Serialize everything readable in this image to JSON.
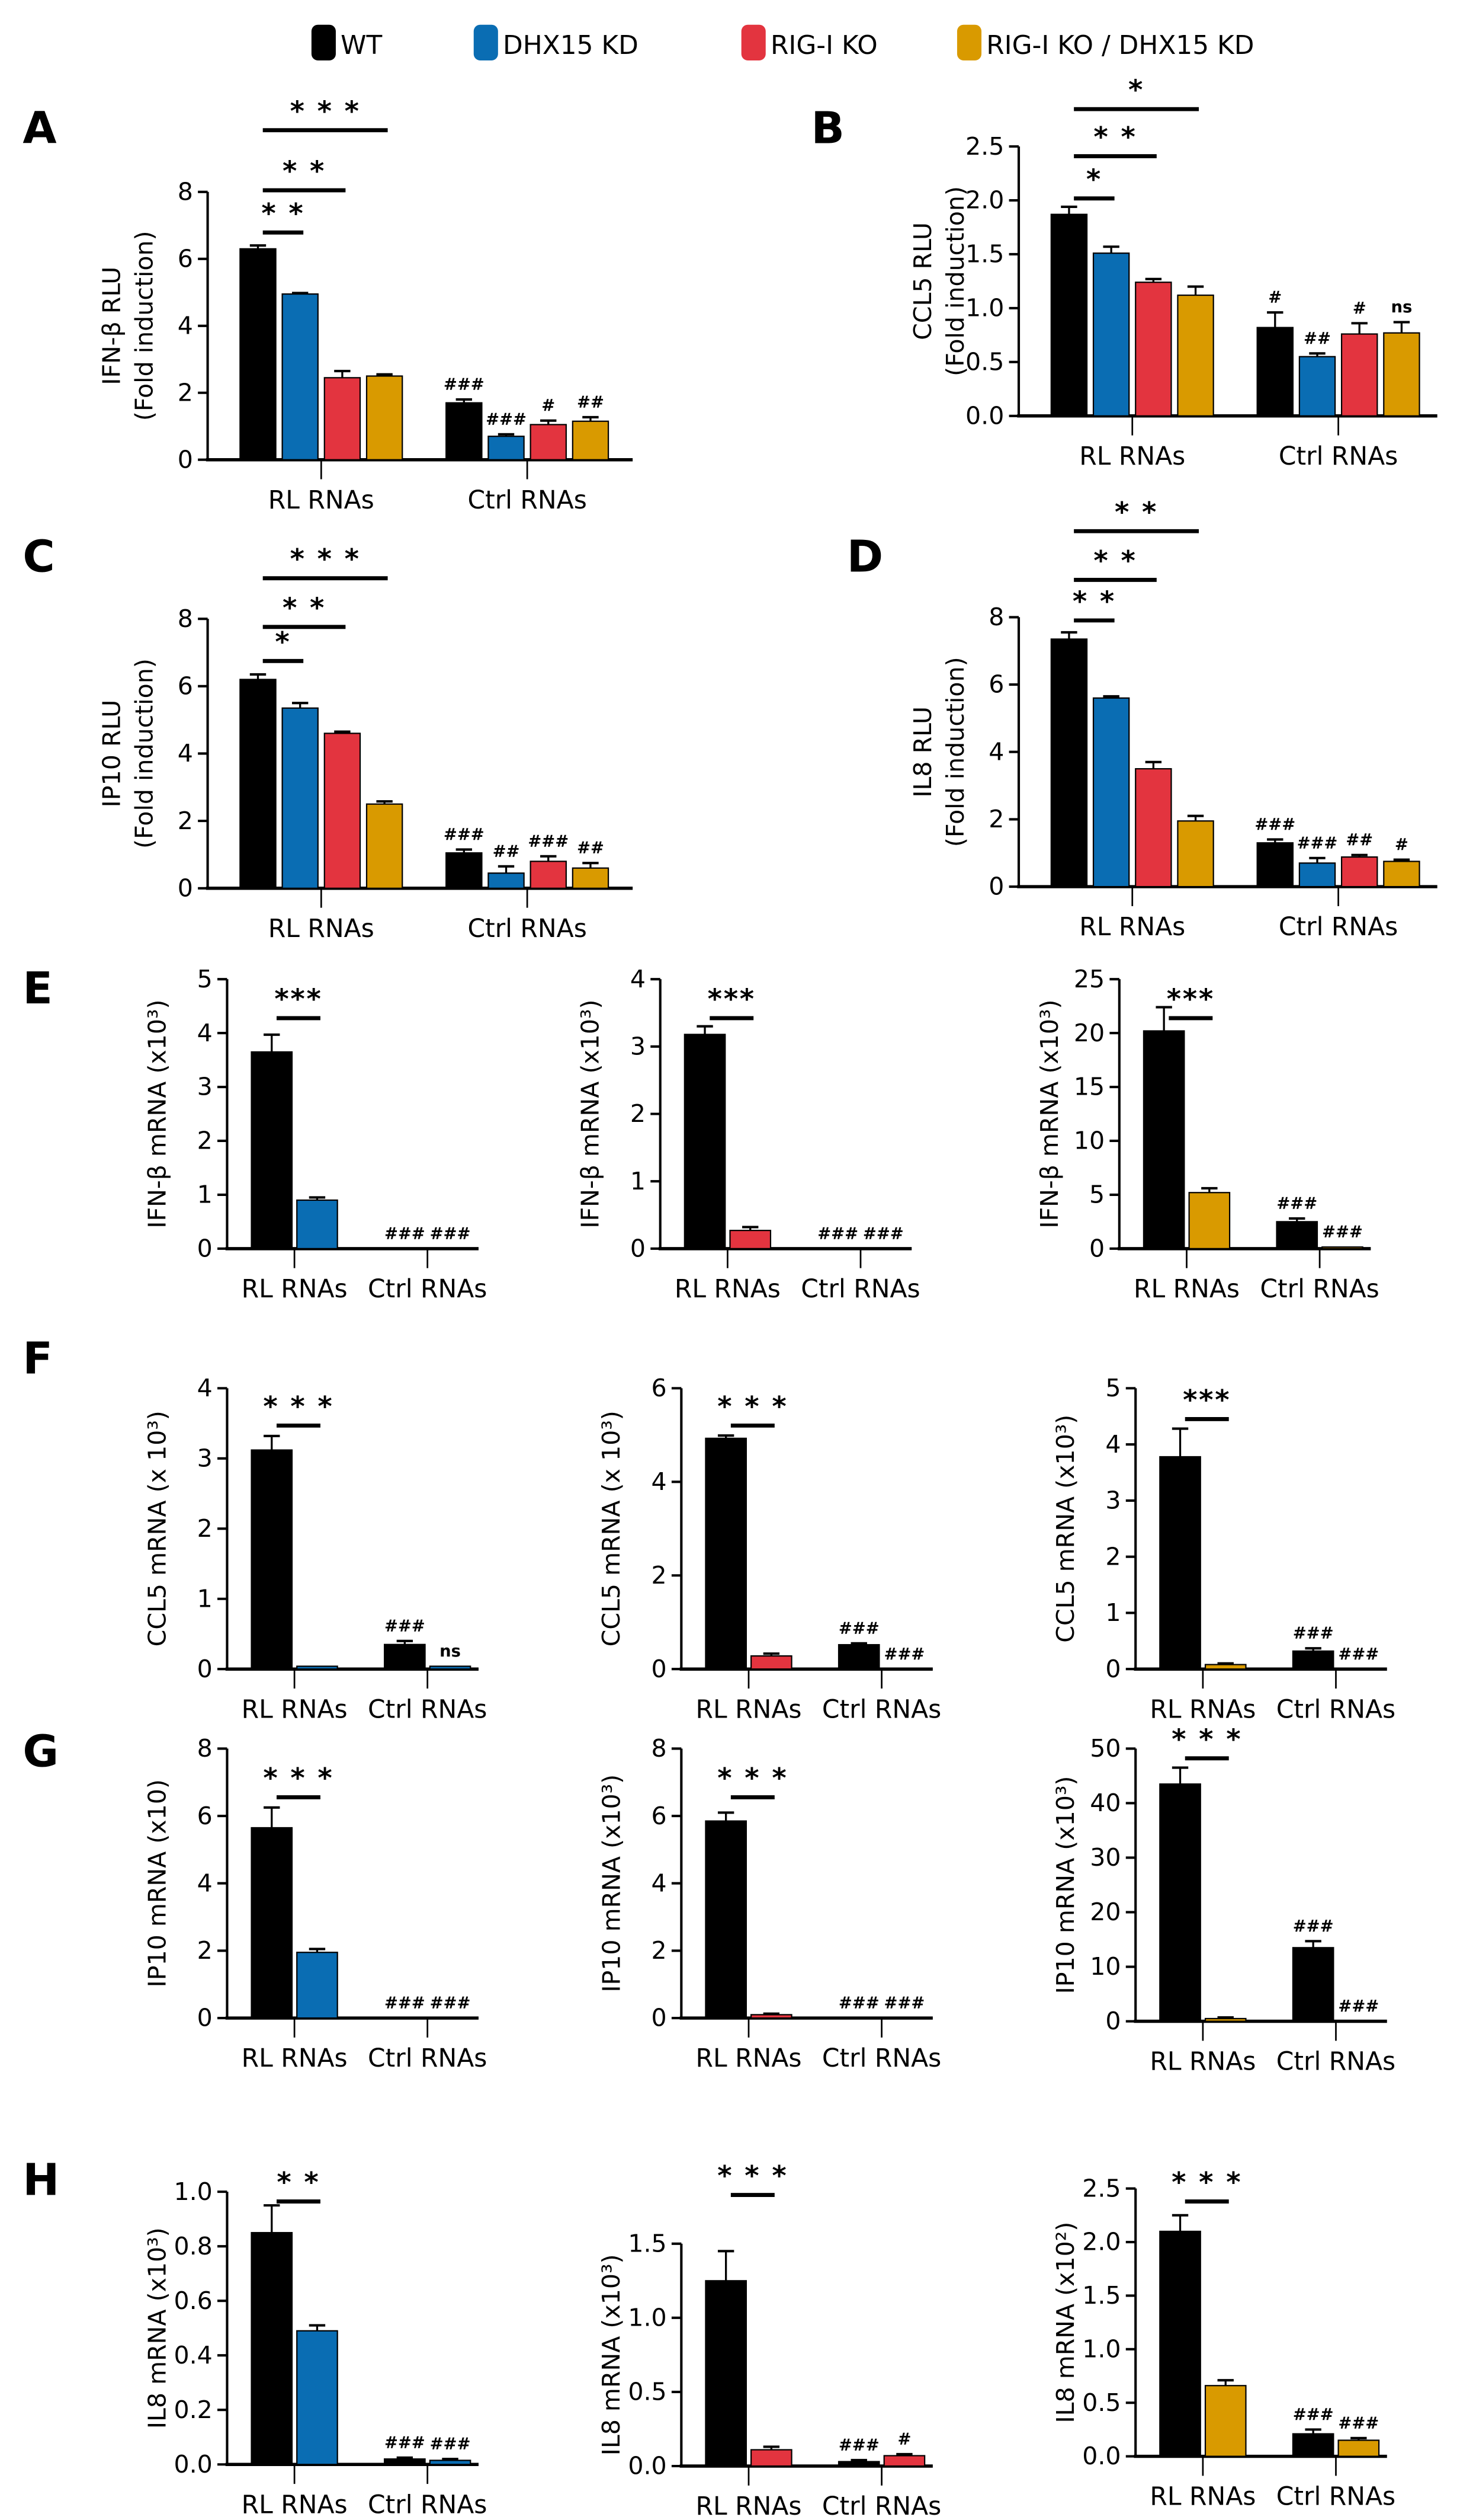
{
  "colors": {
    "WT": "#000000",
    "DHX": "#0a6db3",
    "RIG": "#e3343f",
    "DBL": "#d99a00"
  },
  "legend": [
    {
      "key": "WT",
      "label": "WT"
    },
    {
      "key": "DHX",
      "label": "DHX15 KD"
    },
    {
      "key": "RIG",
      "label": "RIG-I KO"
    },
    {
      "key": "DBL",
      "label": "RIG-I KO / DHX15 KD"
    }
  ],
  "chart_data": [
    {
      "id": "A",
      "letter": "A",
      "type": "bar",
      "ylabel": [
        "IFN-β RLU",
        "(Fold induction)"
      ],
      "ymax": 8,
      "yticks": [
        "0",
        "2",
        "4",
        "6",
        "8"
      ],
      "bar_colors": [
        "WT",
        "DHX",
        "RIG",
        "DBL"
      ],
      "groups": [
        {
          "label": "RL RNAs",
          "values": [
            6.3,
            4.95,
            2.45,
            2.5
          ],
          "errors": [
            0.1,
            0.03,
            0.2,
            0.05
          ],
          "marks": [
            "",
            "",
            "",
            ""
          ]
        },
        {
          "label": "Ctrl RNAs",
          "values": [
            1.7,
            0.7,
            1.05,
            1.15
          ],
          "errors": [
            0.1,
            0.06,
            0.12,
            0.12
          ],
          "marks": [
            "###",
            "###",
            "#",
            "##"
          ]
        }
      ],
      "sig": [
        "* *",
        "* *",
        "* * *"
      ]
    },
    {
      "id": "B",
      "letter": "B",
      "type": "bar",
      "ylabel": [
        "CCL5 RLU",
        "(Fold induction)"
      ],
      "ymax": 2.5,
      "yticks": [
        "0.0",
        "0.5",
        "1.0",
        "1.5",
        "2.0",
        "2.5"
      ],
      "bar_colors": [
        "WT",
        "DHX",
        "RIG",
        "DBL"
      ],
      "groups": [
        {
          "label": "RL RNAs",
          "values": [
            1.87,
            1.51,
            1.24,
            1.12
          ],
          "errors": [
            0.07,
            0.06,
            0.03,
            0.08
          ],
          "marks": [
            "",
            "",
            "",
            ""
          ]
        },
        {
          "label": "Ctrl RNAs",
          "values": [
            0.82,
            0.55,
            0.76,
            0.77
          ],
          "errors": [
            0.14,
            0.03,
            0.1,
            0.1
          ],
          "marks": [
            "#",
            "##",
            "#",
            "ns"
          ]
        }
      ],
      "sig": [
        "*",
        "* *",
        "*"
      ]
    },
    {
      "id": "C",
      "letter": "C",
      "type": "bar",
      "ylabel": [
        "IP10 RLU",
        "(Fold induction)"
      ],
      "ymax": 8,
      "yticks": [
        "0",
        "2",
        "4",
        "6",
        "8"
      ],
      "bar_colors": [
        "WT",
        "DHX",
        "RIG",
        "DBL"
      ],
      "groups": [
        {
          "label": "RL RNAs",
          "values": [
            6.2,
            5.35,
            4.6,
            2.5
          ],
          "errors": [
            0.15,
            0.15,
            0.05,
            0.08
          ],
          "marks": [
            "",
            "",
            "",
            ""
          ]
        },
        {
          "label": "Ctrl RNAs",
          "values": [
            1.05,
            0.45,
            0.8,
            0.6
          ],
          "errors": [
            0.1,
            0.2,
            0.15,
            0.15
          ],
          "marks": [
            "###",
            "##",
            "###",
            "##"
          ]
        }
      ],
      "sig": [
        "*",
        "* *",
        "* * *"
      ]
    },
    {
      "id": "D",
      "letter": "D",
      "type": "bar",
      "ylabel": [
        "IL8 RLU",
        "(Fold induction)"
      ],
      "ymax": 8,
      "yticks": [
        "0",
        "2",
        "4",
        "6",
        "8"
      ],
      "bar_colors": [
        "WT",
        "DHX",
        "RIG",
        "DBL"
      ],
      "groups": [
        {
          "label": "RL RNAs",
          "values": [
            7.35,
            5.6,
            3.5,
            1.95
          ],
          "errors": [
            0.2,
            0.05,
            0.2,
            0.15
          ],
          "marks": [
            "",
            "",
            "",
            ""
          ]
        },
        {
          "label": "Ctrl RNAs",
          "values": [
            1.3,
            0.7,
            0.88,
            0.75
          ],
          "errors": [
            0.1,
            0.15,
            0.06,
            0.05
          ],
          "marks": [
            "###",
            "###",
            "##",
            "#"
          ]
        }
      ],
      "sig": [
        "* *",
        "* *",
        "* *"
      ]
    },
    {
      "id": "E1",
      "letter": "E",
      "type": "bar",
      "ylabel": [
        "IFN-β mRNA (x10³)"
      ],
      "ymax": 5,
      "yticks": [
        "0",
        "1",
        "2",
        "3",
        "4",
        "5"
      ],
      "bar_colors": [
        "WT",
        "DHX"
      ],
      "groups": [
        {
          "label": "RL RNAs",
          "values": [
            3.65,
            0.9
          ],
          "errors": [
            0.32,
            0.05
          ],
          "marks": [
            "",
            ""
          ]
        },
        {
          "label": "Ctrl RNAs",
          "values": [
            0,
            0
          ],
          "errors": [
            0,
            0
          ],
          "marks": [
            "###",
            "###"
          ]
        }
      ],
      "sig": [
        "***"
      ]
    },
    {
      "id": "E2",
      "letter": "",
      "type": "bar",
      "ylabel": [
        "IFN-β mRNA (x10³)"
      ],
      "ymax": 4,
      "yticks": [
        "0",
        "1",
        "2",
        "3",
        "4"
      ],
      "bar_colors": [
        "WT",
        "RIG"
      ],
      "groups": [
        {
          "label": "RL RNAs",
          "values": [
            3.18,
            0.27
          ],
          "errors": [
            0.12,
            0.05
          ],
          "marks": [
            "",
            ""
          ]
        },
        {
          "label": "Ctrl RNAs",
          "values": [
            0,
            0
          ],
          "errors": [
            0,
            0
          ],
          "marks": [
            "###",
            "###"
          ]
        }
      ],
      "sig": [
        "***"
      ]
    },
    {
      "id": "E3",
      "letter": "",
      "type": "bar",
      "ylabel": [
        "IFN-β mRNA (x10³)"
      ],
      "ymax": 25,
      "yticks": [
        "0",
        "5",
        "10",
        "15",
        "20",
        "25"
      ],
      "bar_colors": [
        "WT",
        "DBL"
      ],
      "groups": [
        {
          "label": "RL RNAs",
          "values": [
            20.2,
            5.2
          ],
          "errors": [
            2.2,
            0.4
          ],
          "marks": [
            "",
            ""
          ]
        },
        {
          "label": "Ctrl RNAs",
          "values": [
            2.5,
            0.15
          ],
          "errors": [
            0.3,
            0
          ],
          "marks": [
            "###",
            "###"
          ]
        }
      ],
      "sig": [
        "***"
      ]
    },
    {
      "id": "F1",
      "letter": "F",
      "type": "bar",
      "ylabel": [
        "CCL5 mRNA (x 10³)"
      ],
      "ymax": 4,
      "yticks": [
        "0",
        "1",
        "2",
        "3",
        "4"
      ],
      "bar_colors": [
        "WT",
        "DHX"
      ],
      "groups": [
        {
          "label": "RL RNAs",
          "values": [
            3.12,
            0.04
          ],
          "errors": [
            0.2,
            0
          ],
          "marks": [
            "",
            ""
          ]
        },
        {
          "label": "Ctrl RNAs",
          "values": [
            0.35,
            0.04
          ],
          "errors": [
            0.05,
            0
          ],
          "marks": [
            "###",
            "ns"
          ]
        }
      ],
      "sig": [
        "* * *"
      ]
    },
    {
      "id": "F2",
      "letter": "",
      "type": "bar",
      "ylabel": [
        "CCL5 mRNA (x 10³)"
      ],
      "ymax": 6,
      "yticks": [
        "0",
        "2",
        "4",
        "6"
      ],
      "bar_colors": [
        "WT",
        "RIG"
      ],
      "groups": [
        {
          "label": "RL RNAs",
          "values": [
            4.93,
            0.28
          ],
          "errors": [
            0.06,
            0.05
          ],
          "marks": [
            "",
            ""
          ]
        },
        {
          "label": "Ctrl RNAs",
          "values": [
            0.52,
            0
          ],
          "errors": [
            0.03,
            0
          ],
          "marks": [
            "###",
            "###"
          ]
        }
      ],
      "sig": [
        "* * *"
      ]
    },
    {
      "id": "F3",
      "letter": "",
      "type": "bar",
      "ylabel": [
        "CCL5 mRNA (x10³)"
      ],
      "ymax": 5,
      "yticks": [
        "0",
        "1",
        "2",
        "3",
        "4",
        "5"
      ],
      "bar_colors": [
        "WT",
        "DBL"
      ],
      "groups": [
        {
          "label": "RL RNAs",
          "values": [
            3.78,
            0.08
          ],
          "errors": [
            0.5,
            0.02
          ],
          "marks": [
            "",
            ""
          ]
        },
        {
          "label": "Ctrl RNAs",
          "values": [
            0.32,
            0
          ],
          "errors": [
            0.05,
            0
          ],
          "marks": [
            "###",
            "###"
          ]
        }
      ],
      "sig": [
        "***"
      ]
    },
    {
      "id": "G1",
      "letter": "G",
      "type": "bar",
      "ylabel": [
        "IP10 mRNA (x10)"
      ],
      "ymax": 8,
      "yticks": [
        "0",
        "2",
        "4",
        "6",
        "8"
      ],
      "bar_colors": [
        "WT",
        "DHX"
      ],
      "groups": [
        {
          "label": "RL RNAs",
          "values": [
            5.65,
            1.95
          ],
          "errors": [
            0.6,
            0.1
          ],
          "marks": [
            "",
            ""
          ]
        },
        {
          "label": "Ctrl RNAs",
          "values": [
            0,
            0
          ],
          "errors": [
            0,
            0
          ],
          "marks": [
            "###",
            "###"
          ]
        }
      ],
      "sig": [
        "* * *"
      ]
    },
    {
      "id": "G2",
      "letter": "",
      "type": "bar",
      "ylabel": [
        "IP10 mRNA (x10³)"
      ],
      "ymax": 8,
      "yticks": [
        "0",
        "2",
        "4",
        "6",
        "8"
      ],
      "bar_colors": [
        "WT",
        "RIG"
      ],
      "groups": [
        {
          "label": "RL RNAs",
          "values": [
            5.85,
            0.1
          ],
          "errors": [
            0.25,
            0.03
          ],
          "marks": [
            "",
            ""
          ]
        },
        {
          "label": "Ctrl RNAs",
          "values": [
            0,
            0
          ],
          "errors": [
            0,
            0
          ],
          "marks": [
            "###",
            "###"
          ]
        }
      ],
      "sig": [
        "* * *"
      ]
    },
    {
      "id": "G3",
      "letter": "",
      "type": "bar",
      "ylabel": [
        "IP10 mRNA (x10³)"
      ],
      "ymax": 50,
      "yticks": [
        "0",
        "10",
        "20",
        "30",
        "40",
        "50"
      ],
      "bar_colors": [
        "WT",
        "DBL"
      ],
      "groups": [
        {
          "label": "RL RNAs",
          "values": [
            43.5,
            0.5
          ],
          "errors": [
            3,
            0.2
          ],
          "marks": [
            "",
            ""
          ]
        },
        {
          "label": "Ctrl RNAs",
          "values": [
            13.5,
            0
          ],
          "errors": [
            1.2,
            0
          ],
          "marks": [
            "###",
            "###"
          ]
        }
      ],
      "sig": [
        "* * *"
      ]
    },
    {
      "id": "H1",
      "letter": "H",
      "type": "bar",
      "ylabel": [
        "IL8 mRNA (x10³)"
      ],
      "ymax": 1.0,
      "yticks": [
        "0.0",
        "0.2",
        "0.4",
        "0.6",
        "0.8",
        "1.0"
      ],
      "bar_colors": [
        "WT",
        "DHX"
      ],
      "groups": [
        {
          "label": "RL RNAs",
          "values": [
            0.85,
            0.49
          ],
          "errors": [
            0.1,
            0.02
          ],
          "marks": [
            "",
            ""
          ]
        },
        {
          "label": "Ctrl RNAs",
          "values": [
            0.02,
            0.015
          ],
          "errors": [
            0.005,
            0.005
          ],
          "marks": [
            "###",
            "###"
          ]
        }
      ],
      "sig": [
        "* *"
      ]
    },
    {
      "id": "H2",
      "letter": "",
      "type": "bar",
      "ylabel": [
        "IL8 mRNA (x10³)"
      ],
      "ymax": 1.5,
      "yticks": [
        "0.0",
        "0.5",
        "1.0",
        "1.5"
      ],
      "bar_colors": [
        "WT",
        "RIG"
      ],
      "groups": [
        {
          "label": "RL RNAs",
          "values": [
            1.25,
            0.11
          ],
          "errors": [
            0.2,
            0.02
          ],
          "marks": [
            "",
            ""
          ]
        },
        {
          "label": "Ctrl RNAs",
          "values": [
            0.03,
            0.07
          ],
          "errors": [
            0.01,
            0.01
          ],
          "marks": [
            "###",
            "#"
          ]
        }
      ],
      "sig": [
        "* * *"
      ]
    },
    {
      "id": "H3",
      "letter": "",
      "type": "bar",
      "ylabel": [
        "IL8 mRNA (x10²)"
      ],
      "ymax": 2.5,
      "yticks": [
        "0.0",
        "0.5",
        "1.0",
        "1.5",
        "2.0",
        "2.5"
      ],
      "bar_colors": [
        "WT",
        "DBL"
      ],
      "groups": [
        {
          "label": "RL RNAs",
          "values": [
            2.1,
            0.66
          ],
          "errors": [
            0.15,
            0.05
          ],
          "marks": [
            "",
            ""
          ]
        },
        {
          "label": "Ctrl RNAs",
          "values": [
            0.21,
            0.15
          ],
          "errors": [
            0.04,
            0.02
          ],
          "marks": [
            "###",
            "###"
          ]
        }
      ],
      "sig": [
        "* * *"
      ]
    }
  ]
}
